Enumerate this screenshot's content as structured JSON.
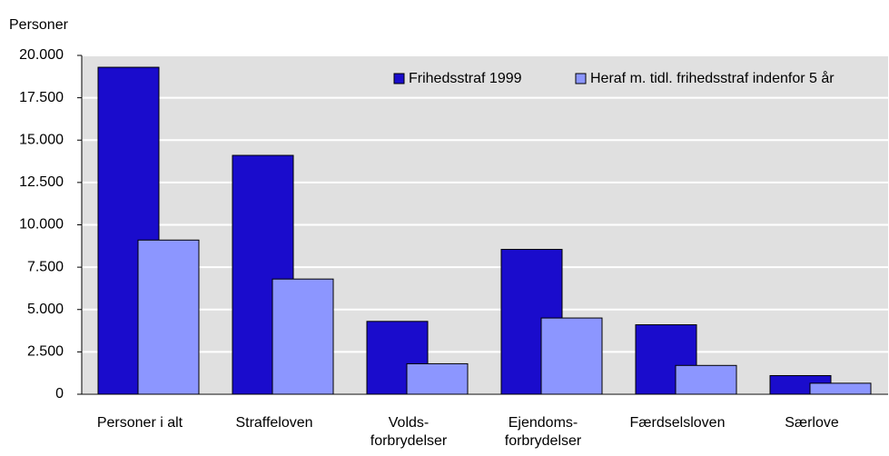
{
  "chart_data": {
    "type": "bar",
    "y_label": "Personer",
    "categories": [
      "Personer i alt",
      "Straffeloven",
      "Volds-\nforbrydelser",
      "Ejendoms-\nforbrydelser",
      "Færdselsloven",
      "Særlove"
    ],
    "series": [
      {
        "name": "Frihedsstraf 1999",
        "color": "#1a0ccc",
        "values": [
          19300,
          14100,
          4300,
          8550,
          4100,
          1100
        ]
      },
      {
        "name": "Heraf  m. tidl. frihedsstraf indenfor 5 år",
        "color": "#8c96ff",
        "values": [
          9100,
          6800,
          1800,
          4500,
          1700,
          650
        ]
      }
    ],
    "ylim": [
      0,
      20000
    ],
    "yticks": [
      0,
      {
        "value": 2500,
        "label": "2.500"
      },
      {
        "value": 5000,
        "label": "5.000"
      },
      {
        "value": 7500,
        "label": "7.500"
      },
      {
        "value": 10000,
        "label": "10.000"
      },
      {
        "value": 12500,
        "label": "12.500"
      },
      {
        "value": 15000,
        "label": "15.000"
      },
      {
        "value": 17500,
        "label": "17.500"
      },
      {
        "value": 20000,
        "label": "20.000"
      }
    ],
    "grid": true,
    "legend": "top-right"
  }
}
